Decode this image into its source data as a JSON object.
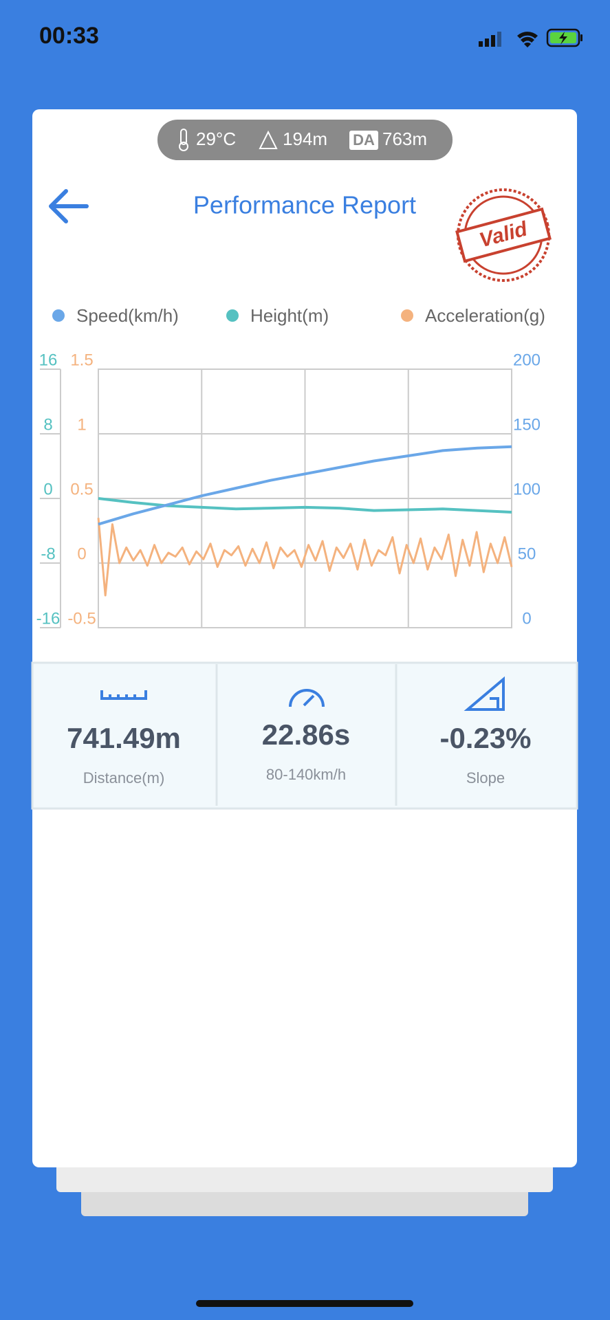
{
  "status_bar": {
    "time": "00:33"
  },
  "conditions": {
    "temperature": "29°C",
    "altitude": "194m",
    "da_label": "DA",
    "density_altitude": "763m"
  },
  "header": {
    "title": "Performance Report",
    "stamp": "Valid"
  },
  "chart_data": {
    "type": "line",
    "series": [
      {
        "name": "Speed(km/h)",
        "color": "#6aa7e8",
        "axis": "y2",
        "values": [
          80,
          88,
          95,
          102,
          108,
          114,
          119,
          124,
          129,
          133,
          137,
          139,
          140
        ]
      },
      {
        "name": "Height(m)",
        "color": "#55c1c1",
        "axis": "y",
        "values": [
          0,
          -0.5,
          -0.9,
          -1.1,
          -1.3,
          -1.2,
          -1.1,
          -1.2,
          -1.5,
          -1.4,
          -1.3,
          -1.5,
          -1.7
        ]
      },
      {
        "name": "Acceleration(g)",
        "color": "#f4b27e",
        "axis": "y3",
        "values": [
          0.35,
          -0.25,
          0.3,
          0.0,
          0.12,
          0.02,
          0.1,
          -0.02,
          0.14,
          0.0,
          0.08,
          0.05,
          0.12,
          -0.01,
          0.09,
          0.03,
          0.15,
          -0.03,
          0.1,
          0.06,
          0.13,
          -0.02,
          0.11,
          0.0,
          0.16,
          -0.04,
          0.12,
          0.05,
          0.1,
          -0.03,
          0.14,
          0.02,
          0.17,
          -0.06,
          0.12,
          0.04,
          0.15,
          -0.05,
          0.18,
          -0.02,
          0.1,
          0.06,
          0.2,
          -0.08,
          0.14,
          0.0,
          0.19,
          -0.05,
          0.12,
          0.03,
          0.22,
          -0.1,
          0.18,
          -0.02,
          0.24,
          -0.07,
          0.15,
          0.0,
          0.2,
          -0.03
        ]
      }
    ],
    "ylim": [
      -16,
      16
    ],
    "yticks": [
      -16,
      -8,
      0,
      8,
      16
    ],
    "ycolor": "#55c1c1",
    "y3lim": [
      -0.5,
      1.5
    ],
    "y3ticks": [
      -0.5,
      0,
      0.5,
      1,
      1.5
    ],
    "y3color": "#f4b27e",
    "y2lim": [
      0,
      200
    ],
    "y2ticks": [
      0,
      50,
      100,
      150,
      200
    ],
    "y2color": "#6aa7e8",
    "grid": true
  },
  "stats": [
    {
      "value": "741.49m",
      "label": "Distance(m)"
    },
    {
      "value": "22.86s",
      "label": "80-140km/h"
    },
    {
      "value": "-0.23%",
      "label": "Slope"
    }
  ]
}
